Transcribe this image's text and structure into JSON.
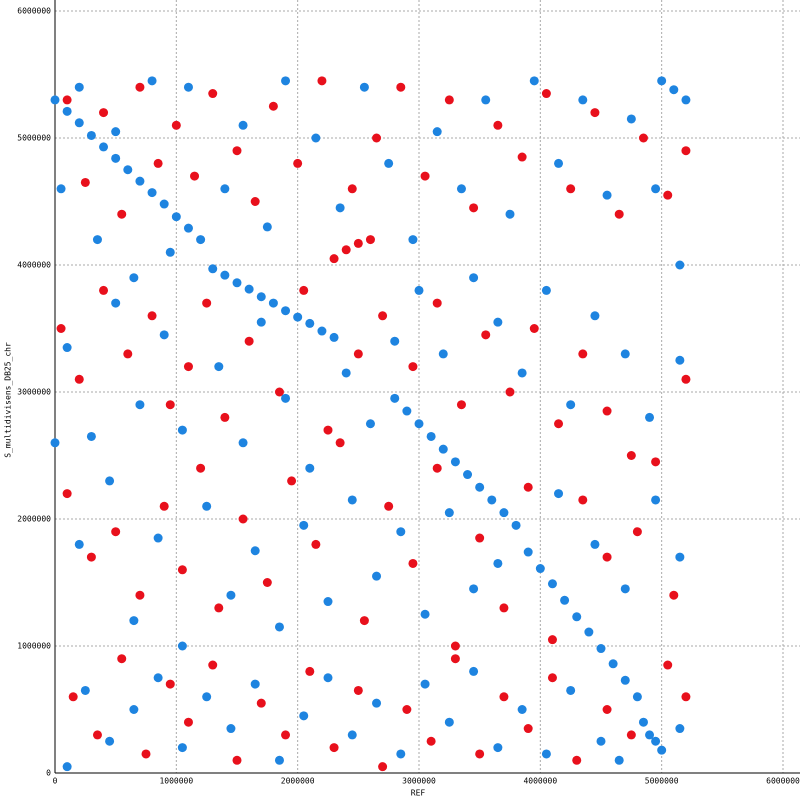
{
  "chart_data": {
    "type": "scatter",
    "x_label": "REF",
    "y_label": "S_multidivisens_DB25_chr",
    "xlim": [
      0,
      6000000
    ],
    "ylim": [
      0,
      6000000
    ],
    "xticks": [
      0,
      1000000,
      2000000,
      3000000,
      4000000,
      5000000,
      6000000
    ],
    "yticks": [
      0,
      1000000,
      2000000,
      3000000,
      4000000,
      5000000,
      6000000
    ],
    "grid": true,
    "series": [
      {
        "color": "#e8101c",
        "x": [
          100000,
          250000,
          400000,
          550000,
          700000,
          850000,
          1000000,
          1150000,
          1300000,
          1500000,
          1650000,
          1800000,
          2000000,
          2200000,
          2450000,
          2650000,
          2850000,
          3050000,
          3250000,
          3450000,
          3650000,
          3850000,
          4050000,
          4250000,
          4450000,
          4650000,
          4850000,
          5050000,
          5200000,
          50000,
          200000,
          400000,
          600000,
          800000,
          950000,
          1100000,
          1250000,
          1400000,
          1600000,
          1850000,
          2050000,
          2250000,
          2500000,
          2700000,
          2950000,
          3150000,
          3350000,
          3550000,
          3750000,
          3950000,
          4150000,
          4350000,
          4550000,
          4750000,
          4950000,
          5200000,
          100000,
          300000,
          500000,
          700000,
          900000,
          1050000,
          1200000,
          1350000,
          1550000,
          1750000,
          1950000,
          2150000,
          2350000,
          2550000,
          2750000,
          2950000,
          3150000,
          3300000,
          3500000,
          3700000,
          3900000,
          4100000,
          4350000,
          4550000,
          4800000,
          5100000,
          150000,
          350000,
          550000,
          750000,
          950000,
          1100000,
          1300000,
          1500000,
          1700000,
          1900000,
          2100000,
          2300000,
          2500000,
          2700000,
          2900000,
          3100000,
          3300000,
          3500000,
          3700000,
          3900000,
          4100000,
          4300000,
          4550000,
          4750000,
          5050000,
          5200000,
          2300000,
          2400000,
          2500000,
          2600000
        ],
        "y": [
          5300000,
          4650000,
          5200000,
          4400000,
          5400000,
          4800000,
          5100000,
          4700000,
          5350000,
          4900000,
          4500000,
          5250000,
          4800000,
          5450000,
          4600000,
          5000000,
          5400000,
          4700000,
          5300000,
          4450000,
          5100000,
          4850000,
          5350000,
          4600000,
          5200000,
          4400000,
          5000000,
          4550000,
          4900000,
          3500000,
          3100000,
          3800000,
          3300000,
          3600000,
          2900000,
          3200000,
          3700000,
          2800000,
          3400000,
          3000000,
          3800000,
          2700000,
          3300000,
          3600000,
          3200000,
          3700000,
          2900000,
          3450000,
          3000000,
          3500000,
          2750000,
          3300000,
          2850000,
          2500000,
          2450000,
          3100000,
          2200000,
          1700000,
          1900000,
          1400000,
          2100000,
          1600000,
          2400000,
          1300000,
          2000000,
          1500000,
          2300000,
          1800000,
          2600000,
          1200000,
          2100000,
          1650000,
          2400000,
          1000000,
          1850000,
          1300000,
          2250000,
          1050000,
          2150000,
          1700000,
          1900000,
          1400000,
          600000,
          300000,
          900000,
          150000,
          700000,
          400000,
          850000,
          100000,
          550000,
          300000,
          800000,
          200000,
          650000,
          50000,
          500000,
          250000,
          900000,
          150000,
          600000,
          350000,
          750000,
          100000,
          500000,
          300000,
          850000,
          600000,
          4050000,
          4120000,
          4170000,
          4200000
        ]
      },
      {
        "color": "#1e84e0",
        "x": [
          0,
          100000,
          200000,
          300000,
          400000,
          500000,
          600000,
          700000,
          800000,
          900000,
          1000000,
          1100000,
          1200000,
          1300000,
          1400000,
          1500000,
          1600000,
          1700000,
          1800000,
          1900000,
          2000000,
          2100000,
          2200000,
          2300000,
          2800000,
          2900000,
          3000000,
          3100000,
          3200000,
          3300000,
          3400000,
          3500000,
          3600000,
          3700000,
          3800000,
          3900000,
          4000000,
          4100000,
          4200000,
          4300000,
          4400000,
          4500000,
          4600000,
          4700000,
          4800000,
          4850000,
          4900000,
          4950000,
          5000000,
          5000000,
          5100000,
          5200000,
          50000,
          200000,
          350000,
          500000,
          650000,
          800000,
          950000,
          1100000,
          1400000,
          1550000,
          1750000,
          1900000,
          2150000,
          2350000,
          2550000,
          2750000,
          2950000,
          3150000,
          3350000,
          3550000,
          3750000,
          3950000,
          4150000,
          4350000,
          4550000,
          4750000,
          4950000,
          5150000,
          100000,
          300000,
          500000,
          700000,
          900000,
          1050000,
          1350000,
          1550000,
          1700000,
          1900000,
          2100000,
          2400000,
          2600000,
          2800000,
          3000000,
          3200000,
          3450000,
          3650000,
          3850000,
          4050000,
          4250000,
          4450000,
          4700000,
          4900000,
          5150000,
          0,
          200000,
          450000,
          650000,
          850000,
          1050000,
          1250000,
          1450000,
          1650000,
          1850000,
          2050000,
          2250000,
          2450000,
          2650000,
          2850000,
          3050000,
          3250000,
          3450000,
          3650000,
          4150000,
          4450000,
          4700000,
          4950000,
          5150000,
          100000,
          250000,
          450000,
          650000,
          850000,
          1050000,
          1250000,
          1450000,
          1650000,
          1850000,
          2050000,
          2250000,
          2450000,
          2650000,
          2850000,
          3050000,
          3250000,
          3450000,
          3650000,
          3850000,
          4050000,
          4250000,
          4500000,
          4650000,
          5150000
        ],
        "y": [
          5300000,
          5210000,
          5120000,
          5020000,
          4930000,
          4840000,
          4750000,
          4660000,
          4570000,
          4480000,
          4380000,
          4290000,
          4200000,
          3970000,
          3920000,
          3860000,
          3810000,
          3750000,
          3700000,
          3640000,
          3590000,
          3540000,
          3480000,
          3430000,
          2950000,
          2850000,
          2750000,
          2650000,
          2550000,
          2450000,
          2350000,
          2250000,
          2150000,
          2050000,
          1950000,
          1740000,
          1610000,
          1490000,
          1360000,
          1230000,
          1110000,
          980000,
          860000,
          730000,
          600000,
          400000,
          300000,
          250000,
          180000,
          5450000,
          5380000,
          5300000,
          4600000,
          5400000,
          4200000,
          5050000,
          3900000,
          5450000,
          4100000,
          5400000,
          4600000,
          5100000,
          4300000,
          5450000,
          5000000,
          4450000,
          5400000,
          4800000,
          4200000,
          5050000,
          4600000,
          5300000,
          4400000,
          5450000,
          4800000,
          5300000,
          4550000,
          5150000,
          4600000,
          4000000,
          3350000,
          2650000,
          3700000,
          2900000,
          3450000,
          2700000,
          3200000,
          2600000,
          3550000,
          2950000,
          2400000,
          3150000,
          2750000,
          3400000,
          3800000,
          3300000,
          3900000,
          3550000,
          3150000,
          3800000,
          2900000,
          3600000,
          3300000,
          2800000,
          3250000,
          2600000,
          1800000,
          2300000,
          1200000,
          1850000,
          1000000,
          2100000,
          1400000,
          1750000,
          1150000,
          1950000,
          1350000,
          2150000,
          1550000,
          1900000,
          1250000,
          2050000,
          1450000,
          1650000,
          2200000,
          1800000,
          1450000,
          2150000,
          1700000,
          50000,
          650000,
          250000,
          500000,
          750000,
          200000,
          600000,
          350000,
          700000,
          100000,
          450000,
          750000,
          300000,
          550000,
          150000,
          700000,
          400000,
          800000,
          200000,
          500000,
          150000,
          650000,
          250000,
          100000,
          350000
        ]
      }
    ]
  }
}
